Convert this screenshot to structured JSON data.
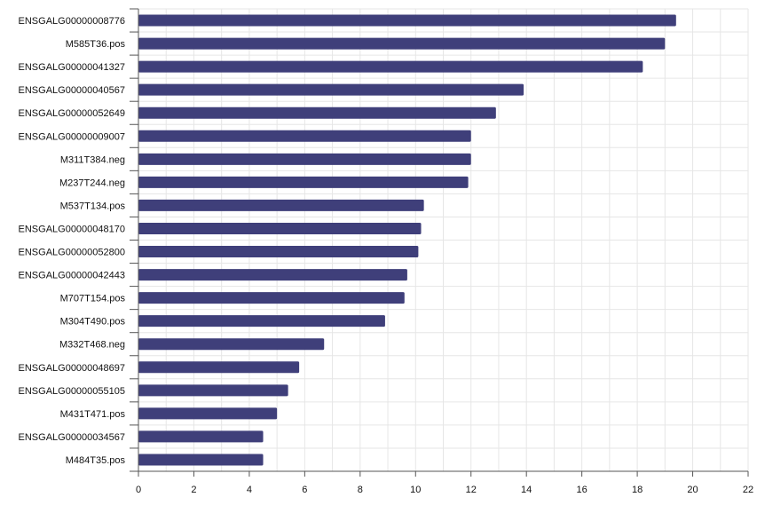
{
  "colors": {
    "bar": "#3f3f7a",
    "grid": "#e6e6e6",
    "axis": "#555555",
    "text": "#111111",
    "background": "#ffffff"
  },
  "chart_data": {
    "type": "bar",
    "orientation": "horizontal",
    "title": "",
    "xlabel": "",
    "ylabel": "",
    "xlim": [
      0,
      22
    ],
    "x_ticks": [
      0,
      2,
      4,
      6,
      8,
      10,
      12,
      14,
      16,
      18,
      20,
      22
    ],
    "grid": true,
    "legend": "none",
    "categories": [
      "ENSGALG00000008776",
      "M585T36.pos",
      "ENSGALG00000041327",
      "ENSGALG00000040567",
      "ENSGALG00000052649",
      "ENSGALG00000009007",
      "M311T384.neg",
      "M237T244.neg",
      "M537T134.pos",
      "ENSGALG00000048170",
      "ENSGALG00000052800",
      "ENSGALG00000042443",
      "M707T154.pos",
      "M304T490.pos",
      "M332T468.neg",
      "ENSGALG00000048697",
      "ENSGALG00000055105",
      "M431T471.pos",
      "ENSGALG00000034567",
      "M484T35.pos"
    ],
    "values": [
      19.4,
      19.0,
      18.2,
      13.9,
      12.9,
      12.0,
      12.0,
      11.9,
      10.3,
      10.2,
      10.1,
      9.7,
      9.6,
      8.9,
      6.7,
      5.8,
      5.4,
      5.0,
      4.5,
      4.5
    ]
  }
}
